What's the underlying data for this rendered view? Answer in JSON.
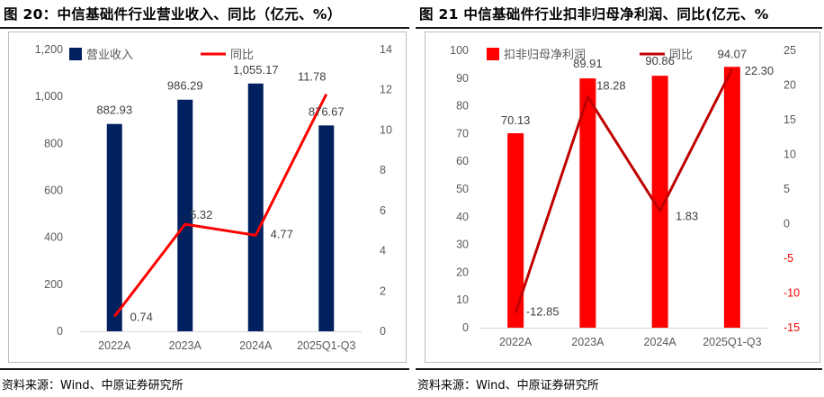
{
  "figures": [
    {
      "title": "图 20：中信基础件行业营业收入、同比（亿元、%）",
      "source": "资料来源：Wind、中原证券研究所"
    },
    {
      "title": "图 21 中信基础件行业扣非归母净利润、同比(亿元、%",
      "source": "资料来源：Wind、中原证券研究所"
    }
  ],
  "chart_data": [
    {
      "type": "bar",
      "categories": [
        "2022A",
        "2023A",
        "2024A",
        "2025Q1-Q3"
      ],
      "series": [
        {
          "name": "营业收入",
          "type": "bar",
          "axis": "left",
          "color": "#002060",
          "values": [
            882.93,
            986.29,
            1055.17,
            876.67
          ],
          "labels": [
            "882.93",
            "986.29",
            "1,055.17",
            "876.67"
          ]
        },
        {
          "name": "同比",
          "type": "line",
          "axis": "right",
          "color": "#ff0000",
          "values": [
            0.74,
            5.32,
            4.77,
            11.78
          ],
          "labels": [
            "0.74",
            "5.32",
            "4.77",
            "11.78"
          ]
        }
      ],
      "y_left": {
        "min": 0,
        "max": 1200,
        "step": 200,
        "ticks": [
          "0",
          "200",
          "400",
          "600",
          "800",
          "1,000",
          "1,200"
        ]
      },
      "y_right": {
        "min": 0,
        "max": 14,
        "step": 2,
        "ticks": [
          "0",
          "2",
          "4",
          "6",
          "8",
          "10",
          "12",
          "14"
        ],
        "color": "#595959"
      },
      "grid": false,
      "legend": "top-left",
      "title": "",
      "xlabel": "",
      "ylabel": ""
    },
    {
      "type": "bar",
      "categories": [
        "2022A",
        "2023A",
        "2024A",
        "2025Q1-Q3"
      ],
      "series": [
        {
          "name": "扣非归母净利润",
          "type": "bar",
          "axis": "left",
          "color": "#ff0000",
          "values": [
            70.13,
            89.91,
            90.86,
            94.07
          ],
          "labels": [
            "70.13",
            "89.91",
            "90.86",
            "94.07"
          ]
        },
        {
          "name": "同比",
          "type": "line",
          "axis": "right",
          "color": "#c00000",
          "values": [
            -12.85,
            18.28,
            1.83,
            22.3
          ],
          "labels": [
            "-12.85",
            "18.28",
            "1.83",
            "22.30"
          ]
        }
      ],
      "y_left": {
        "min": 0,
        "max": 100,
        "step": 10,
        "ticks": [
          "0",
          "10",
          "20",
          "30",
          "40",
          "50",
          "60",
          "70",
          "80",
          "90",
          "100"
        ]
      },
      "y_right": {
        "min": -15,
        "max": 25,
        "step": 5,
        "ticks": [
          "-15",
          "-10",
          "-5",
          "0",
          "5",
          "10",
          "15",
          "20",
          "25"
        ],
        "color": "#595959",
        "negative_color": "#ff0000"
      },
      "grid": false,
      "legend": "top",
      "title": "",
      "xlabel": "",
      "ylabel": ""
    }
  ]
}
